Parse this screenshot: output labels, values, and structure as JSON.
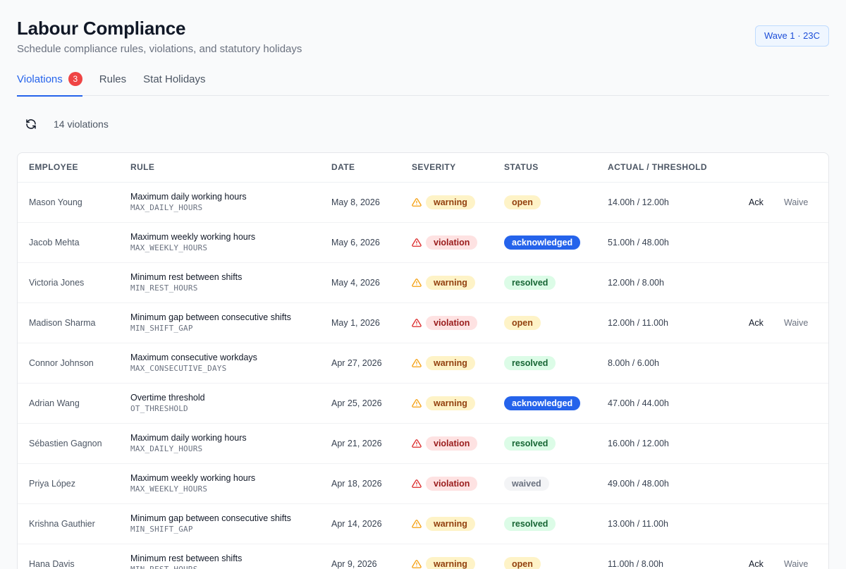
{
  "header": {
    "title": "Labour Compliance",
    "subtitle": "Schedule compliance rules, violations, and statutory holidays",
    "wave_badge": "Wave 1 · 23C"
  },
  "tabs": [
    {
      "label": "Violations",
      "count": "3",
      "active": true
    },
    {
      "label": "Rules"
    },
    {
      "label": "Stat Holidays"
    }
  ],
  "toolbar": {
    "refresh_icon": "refresh-icon",
    "count_text": "14 violations"
  },
  "table": {
    "columns": [
      "EMPLOYEE",
      "RULE",
      "DATE",
      "SEVERITY",
      "STATUS",
      "ACTUAL / THRESHOLD",
      ""
    ],
    "action_labels": {
      "ack": "Ack",
      "waive": "Waive"
    },
    "rows": [
      {
        "employee": "Mason Young",
        "rule": "Maximum daily working hours",
        "code": "MAX_DAILY_HOURS",
        "date": "May 8, 2026",
        "severity": "warning",
        "status": "open",
        "value": "14.00h / 12.00h",
        "actions": true
      },
      {
        "employee": "Jacob Mehta",
        "rule": "Maximum weekly working hours",
        "code": "MAX_WEEKLY_HOURS",
        "date": "May 6, 2026",
        "severity": "violation",
        "status": "acknowledged",
        "value": "51.00h / 48.00h",
        "actions": false
      },
      {
        "employee": "Victoria Jones",
        "rule": "Minimum rest between shifts",
        "code": "MIN_REST_HOURS",
        "date": "May 4, 2026",
        "severity": "warning",
        "status": "resolved",
        "value": "12.00h / 8.00h",
        "actions": false
      },
      {
        "employee": "Madison Sharma",
        "rule": "Minimum gap between consecutive shifts",
        "code": "MIN_SHIFT_GAP",
        "date": "May 1, 2026",
        "severity": "violation",
        "status": "open",
        "value": "12.00h / 11.00h",
        "actions": true
      },
      {
        "employee": "Connor Johnson",
        "rule": "Maximum consecutive workdays",
        "code": "MAX_CONSECUTIVE_DAYS",
        "date": "Apr 27, 2026",
        "severity": "warning",
        "status": "resolved",
        "value": "8.00h / 6.00h",
        "actions": false
      },
      {
        "employee": "Adrian Wang",
        "rule": "Overtime threshold",
        "code": "OT_THRESHOLD",
        "date": "Apr 25, 2026",
        "severity": "warning",
        "status": "acknowledged",
        "value": "47.00h / 44.00h",
        "actions": false
      },
      {
        "employee": "Sébastien Gagnon",
        "rule": "Maximum daily working hours",
        "code": "MAX_DAILY_HOURS",
        "date": "Apr 21, 2026",
        "severity": "violation",
        "status": "resolved",
        "value": "16.00h / 12.00h",
        "actions": false
      },
      {
        "employee": "Priya López",
        "rule": "Maximum weekly working hours",
        "code": "MAX_WEEKLY_HOURS",
        "date": "Apr 18, 2026",
        "severity": "violation",
        "status": "waived",
        "value": "49.00h / 48.00h",
        "actions": false
      },
      {
        "employee": "Krishna Gauthier",
        "rule": "Minimum gap between consecutive shifts",
        "code": "MIN_SHIFT_GAP",
        "date": "Apr 14, 2026",
        "severity": "warning",
        "status": "resolved",
        "value": "13.00h / 11.00h",
        "actions": false
      },
      {
        "employee": "Hana Davis",
        "rule": "Minimum rest between shifts",
        "code": "MIN_REST_HOURS",
        "date": "Apr 9, 2026",
        "severity": "warning",
        "status": "open",
        "value": "11.00h / 8.00h",
        "actions": true
      }
    ]
  },
  "colors": {
    "accent": "#2563eb",
    "warning_icon": "#f59e0b",
    "violation_icon": "#dc2626",
    "tab_count_bg": "#ef4444"
  }
}
